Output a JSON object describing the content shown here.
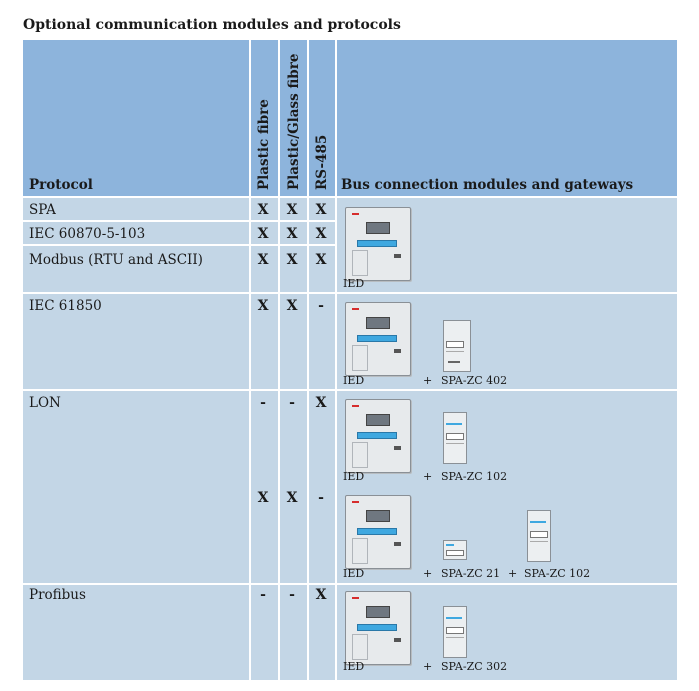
{
  "title": "Optional communication modules and protocols",
  "header": {
    "protocol": "Protocol",
    "plastic_fibre": "Plastic fibre",
    "plastic_glass_fibre": "Plastic/Glass fibre",
    "rs485": "RS-485",
    "bus": "Bus connection modules and gateways"
  },
  "rows": {
    "spa": {
      "name": "SPA",
      "marks": [
        "X",
        "X",
        "X"
      ]
    },
    "iec103": {
      "name": "IEC 60870-5-103",
      "marks": [
        "X",
        "X",
        "X"
      ]
    },
    "modbus": {
      "name": "Modbus (RTU and ASCII)",
      "marks": [
        "X",
        "X",
        "X"
      ]
    },
    "iec61850": {
      "name": "IEC 61850",
      "marks": [
        "X",
        "X",
        "-"
      ]
    },
    "lon": {
      "name": "LON",
      "marks_a": [
        "-",
        "-",
        "X"
      ],
      "marks_b": [
        "X",
        "X",
        "-"
      ]
    },
    "profibus": {
      "name": "Profibus",
      "marks": [
        "-",
        "-",
        "X"
      ]
    }
  },
  "bus": {
    "ied": "IED",
    "plus": "+",
    "iec61850_module": "SPA-ZC 402",
    "lon_a_module": "SPA-ZC  102",
    "lon_b_module1": "SPA-ZC 21",
    "lon_b_module2": "SPA-ZC 102",
    "profibus_module": "SPA-ZC 302"
  }
}
